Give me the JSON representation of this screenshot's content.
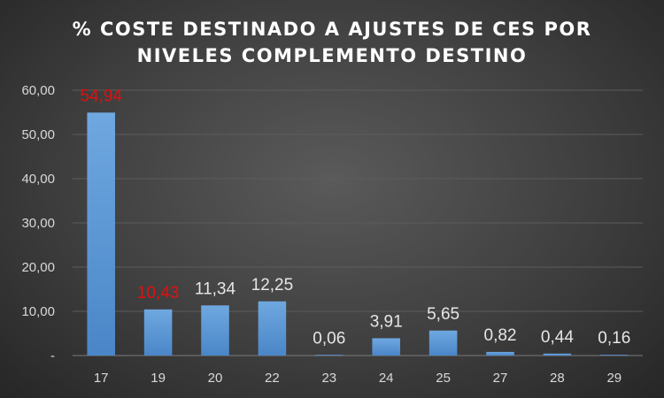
{
  "chart_data": {
    "type": "bar",
    "title_lines": [
      "% COSTE DESTINADO A AJUSTES DE CES POR",
      "NIVELES COMPLEMENTO DESTINO"
    ],
    "categories": [
      "17",
      "19",
      "20",
      "22",
      "23",
      "24",
      "25",
      "27",
      "28",
      "29"
    ],
    "values": [
      54.94,
      10.43,
      11.34,
      12.25,
      0.06,
      3.91,
      5.65,
      0.82,
      0.44,
      0.16
    ],
    "data_labels": [
      "54,94",
      "10,43",
      "11,34",
      "12,25",
      "0,06",
      "3,91",
      "5,65",
      "0,82",
      "0,44",
      "0,16"
    ],
    "highlighted_labels": [
      0,
      1
    ],
    "ylim": [
      0,
      60
    ],
    "yticks": [
      0,
      10,
      20,
      30,
      40,
      50,
      60
    ],
    "ytick_labels": [
      "-",
      "10,00",
      "20,00",
      "30,00",
      "40,00",
      "50,00",
      "60,00"
    ],
    "grid": true,
    "legend": "none",
    "colors": {
      "bar_top": "#6fa8e0",
      "bar_bottom": "#4a86c8",
      "label": "#e6e6e6",
      "label_highlight": "#e01010"
    }
  }
}
